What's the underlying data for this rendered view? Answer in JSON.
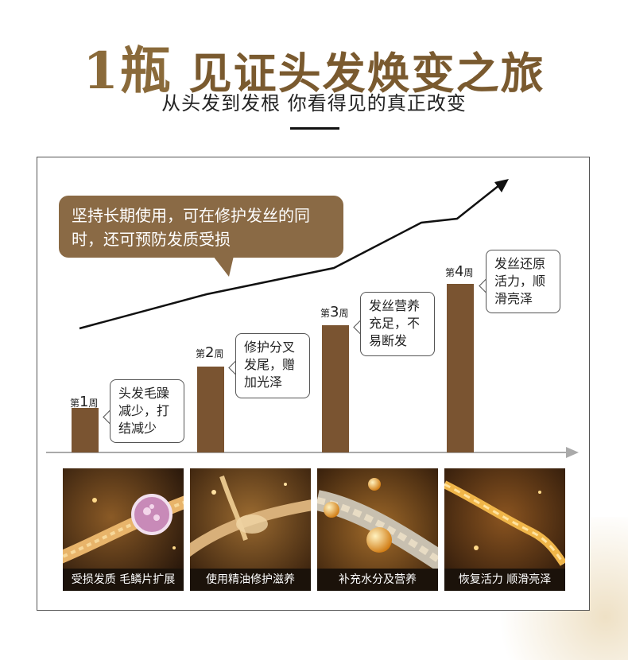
{
  "header": {
    "title_number": "1瓶",
    "title_text": "见证头发焕变之旅",
    "subtitle": "从头发到发根  你看得见的真正改变"
  },
  "callout": {
    "text": "坚持长期使用，可在修护发丝的同时，还可预防发质受损"
  },
  "chart_data": {
    "type": "bar",
    "categories": [
      "第1周",
      "第2周",
      "第3周",
      "第4周"
    ],
    "values": [
      1,
      2,
      3,
      4
    ]
  },
  "weeks": [
    {
      "prefix": "第",
      "num": "1",
      "suffix": "周",
      "note": "头发毛躁减少，打结减少"
    },
    {
      "prefix": "第",
      "num": "2",
      "suffix": "周",
      "note": "修护分叉发尾，赠加光泽"
    },
    {
      "prefix": "第",
      "num": "3",
      "suffix": "周",
      "note": "发丝营养充足，不易断发"
    },
    {
      "prefix": "第",
      "num": "4",
      "suffix": "周",
      "note": "发丝还原活力，顺滑亮泽"
    }
  ],
  "stages": [
    {
      "caption": "受损发质 毛鳞片扩展"
    },
    {
      "caption": "使用精油修护滋养"
    },
    {
      "caption": "补充水分及营养"
    },
    {
      "caption": "恢复活力 顺滑亮泽"
    }
  ],
  "colors": {
    "title": "#7a5a2f",
    "bar": "#7a5431",
    "callout": "#8a6a45"
  }
}
